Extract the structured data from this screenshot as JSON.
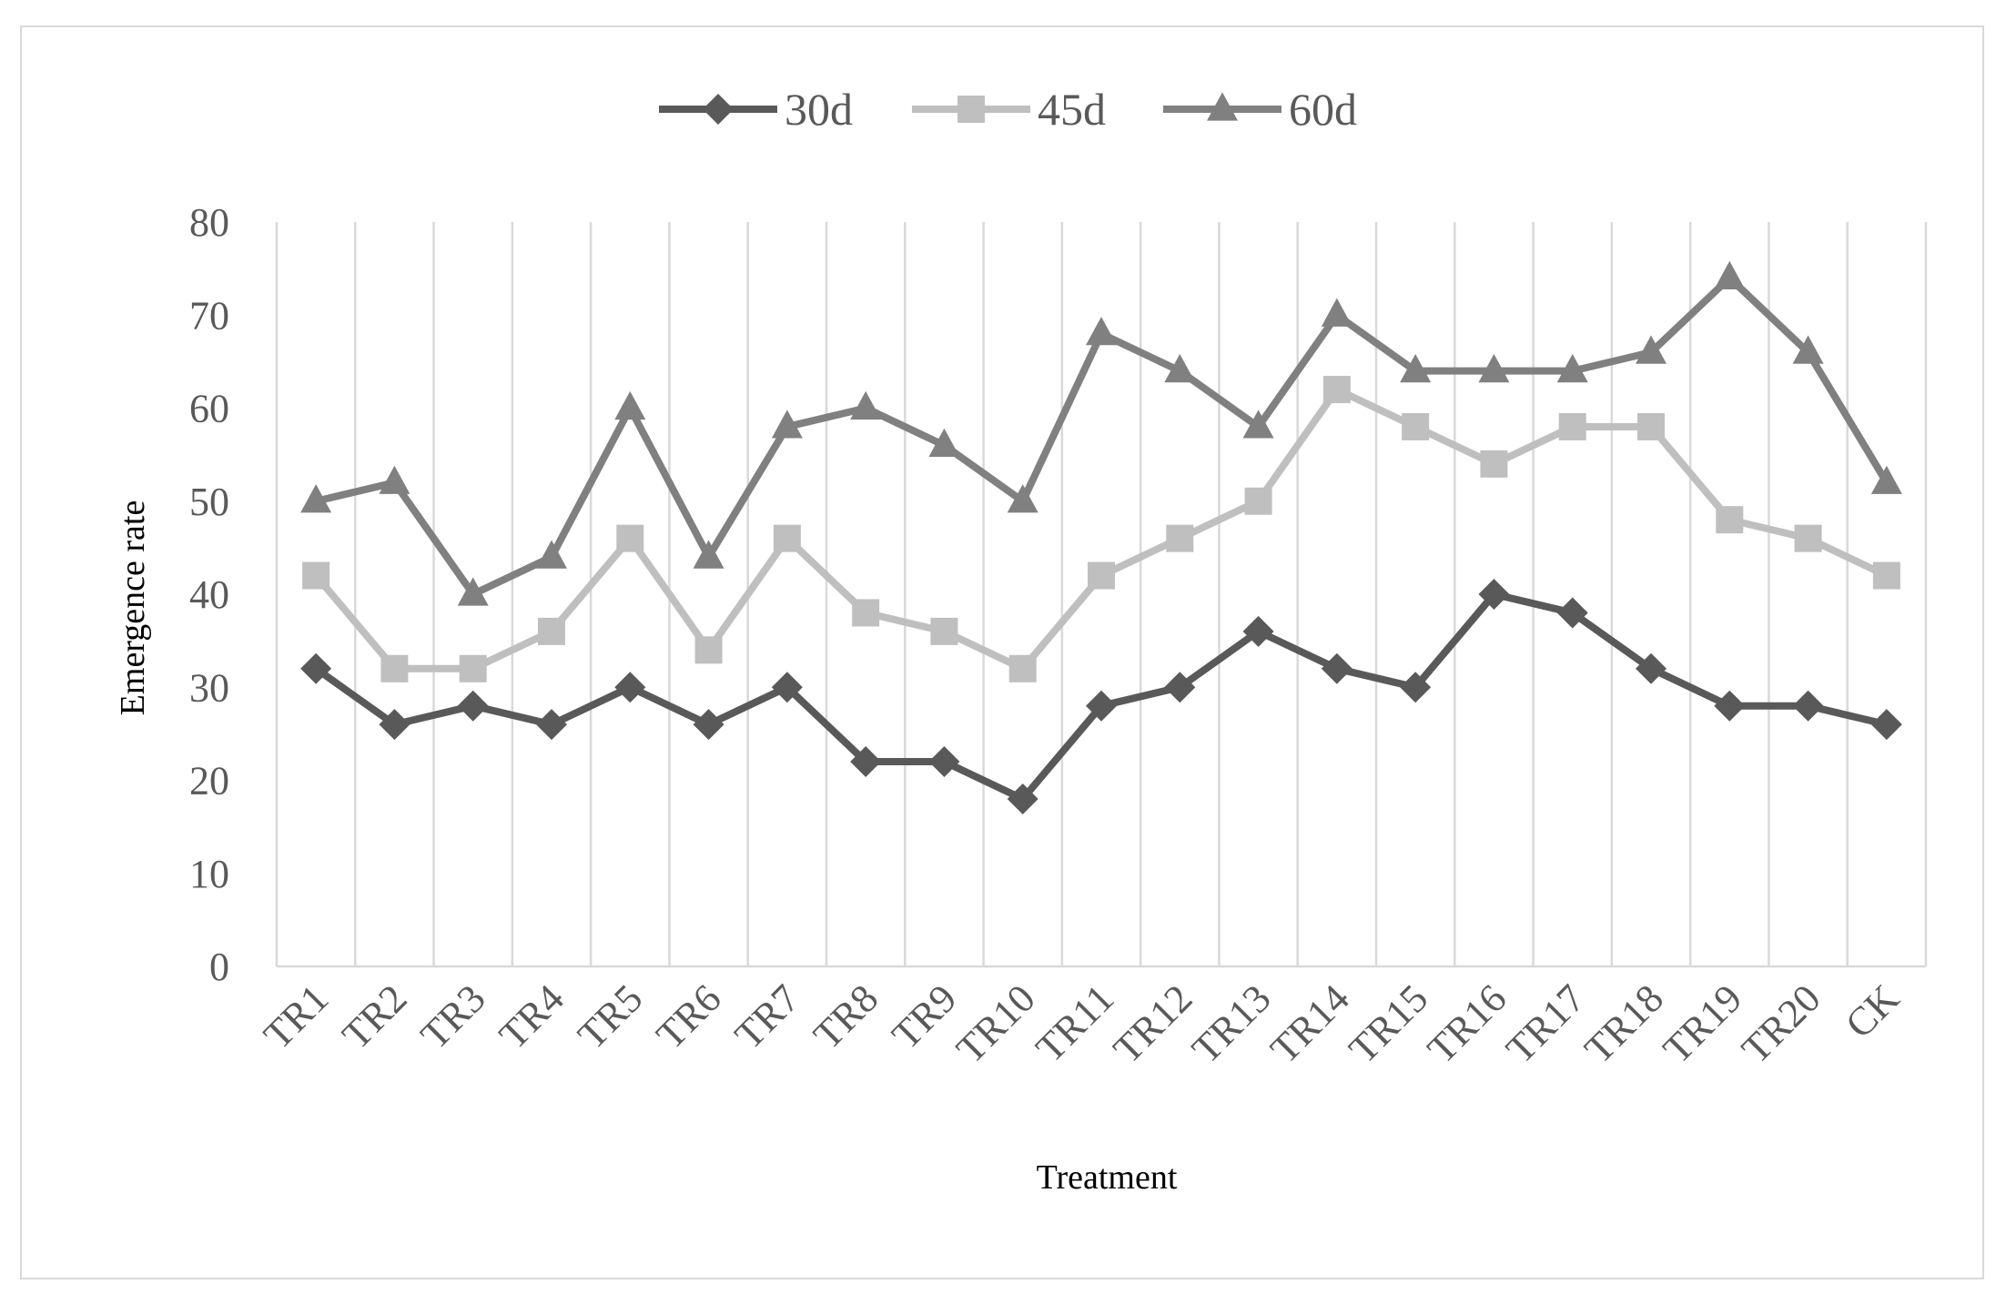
{
  "chart_data": {
    "type": "line",
    "categories": [
      "TR1",
      "TR2",
      "TR3",
      "TR4",
      "TR5",
      "TR6",
      "TR7",
      "TR8",
      "TR9",
      "TR10",
      "TR11",
      "TR12",
      "TR13",
      "TR14",
      "TR15",
      "TR16",
      "TR17",
      "TR18",
      "TR19",
      "TR20",
      "CK"
    ],
    "series": [
      {
        "name": "30d",
        "color": "#595959",
        "marker": "diamond",
        "values": [
          32,
          26,
          28,
          26,
          30,
          26,
          30,
          22,
          22,
          18,
          28,
          30,
          36,
          32,
          30,
          40,
          38,
          32,
          28,
          28,
          26
        ]
      },
      {
        "name": "45d",
        "color": "#bfbfbf",
        "marker": "square",
        "values": [
          42,
          32,
          32,
          36,
          46,
          34,
          46,
          38,
          36,
          32,
          42,
          46,
          50,
          62,
          58,
          54,
          58,
          58,
          48,
          46,
          42
        ]
      },
      {
        "name": "60d",
        "color": "#808080",
        "marker": "triangle",
        "values": [
          50,
          52,
          40,
          44,
          60,
          44,
          58,
          60,
          56,
          50,
          68,
          64,
          58,
          70,
          64,
          64,
          64,
          66,
          74,
          66,
          52
        ]
      }
    ],
    "ylim": [
      0,
      80
    ],
    "yticks": [
      "0",
      "10",
      "20",
      "30",
      "40",
      "50",
      "60",
      "70",
      "80"
    ],
    "xlabel": "Treatment",
    "ylabel": "Emergence rate",
    "grid": "vertical",
    "legend": "top"
  }
}
